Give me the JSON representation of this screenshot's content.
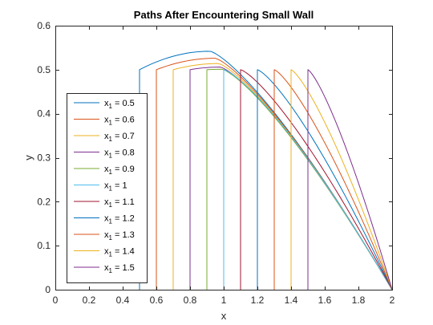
{
  "chart_data": {
    "type": "line",
    "title": "Paths After Encountering Small Wall",
    "xlabel": "x",
    "ylabel": "y",
    "xlim": [
      0,
      2
    ],
    "ylim": [
      0,
      0.6
    ],
    "xticks": [
      0,
      0.2,
      0.4,
      0.6,
      0.8,
      1,
      1.2,
      1.4,
      1.6,
      1.8,
      2
    ],
    "xtick_labels": [
      "0",
      "0.2",
      "0.4",
      "0.6",
      "0.8",
      "1",
      "1.2",
      "1.4",
      "1.6",
      "1.8",
      "2"
    ],
    "yticks": [
      0,
      0.1,
      0.2,
      0.3,
      0.4,
      0.5,
      0.6
    ],
    "ytick_labels": [
      "0",
      "0.1",
      "0.2",
      "0.3",
      "0.4",
      "0.5",
      "0.6"
    ],
    "grid": false,
    "legend_position": "middle-left",
    "wall_height": 0.5,
    "end_x": 2,
    "series": [
      {
        "label_base": "x",
        "label_sub": "1",
        "label_value": "0.5",
        "x1": 0.5,
        "color": "#0072BD",
        "peak_x": 0.92,
        "peak_y": 0.542
      },
      {
        "label_base": "x",
        "label_sub": "1",
        "label_value": "0.6",
        "x1": 0.6,
        "color": "#D95319",
        "peak_x": 0.95,
        "peak_y": 0.526
      },
      {
        "label_base": "x",
        "label_sub": "1",
        "label_value": "0.7",
        "x1": 0.7,
        "color": "#EDB120",
        "peak_x": 0.97,
        "peak_y": 0.514
      },
      {
        "label_base": "x",
        "label_sub": "1",
        "label_value": "0.8",
        "x1": 0.8,
        "color": "#7E2F8E",
        "peak_x": 0.98,
        "peak_y": 0.506
      },
      {
        "label_base": "x",
        "label_sub": "1",
        "label_value": "0.9",
        "x1": 0.9,
        "color": "#77AC30",
        "peak_x": 0.99,
        "peak_y": 0.501
      },
      {
        "label_base": "x",
        "label_sub": "1",
        "label_value": "1",
        "x1": 1.0,
        "color": "#4DBEEE",
        "peak_x": 1.0,
        "peak_y": 0.5
      },
      {
        "label_base": "x",
        "label_sub": "1",
        "label_value": "1.1",
        "x1": 1.1,
        "color": "#A2142F",
        "peak_x": 1.1,
        "peak_y": 0.5
      },
      {
        "label_base": "x",
        "label_sub": "1",
        "label_value": "1.2",
        "x1": 1.2,
        "color": "#0072BD",
        "peak_x": 1.2,
        "peak_y": 0.5
      },
      {
        "label_base": "x",
        "label_sub": "1",
        "label_value": "1.3",
        "x1": 1.3,
        "color": "#D95319",
        "peak_x": 1.3,
        "peak_y": 0.5
      },
      {
        "label_base": "x",
        "label_sub": "1",
        "label_value": "1.4",
        "x1": 1.4,
        "color": "#EDB120",
        "peak_x": 1.4,
        "peak_y": 0.5
      },
      {
        "label_base": "x",
        "label_sub": "1",
        "label_value": "1.5",
        "x1": 1.5,
        "color": "#7E2F8E",
        "peak_x": 1.5,
        "peak_y": 0.5
      }
    ]
  }
}
